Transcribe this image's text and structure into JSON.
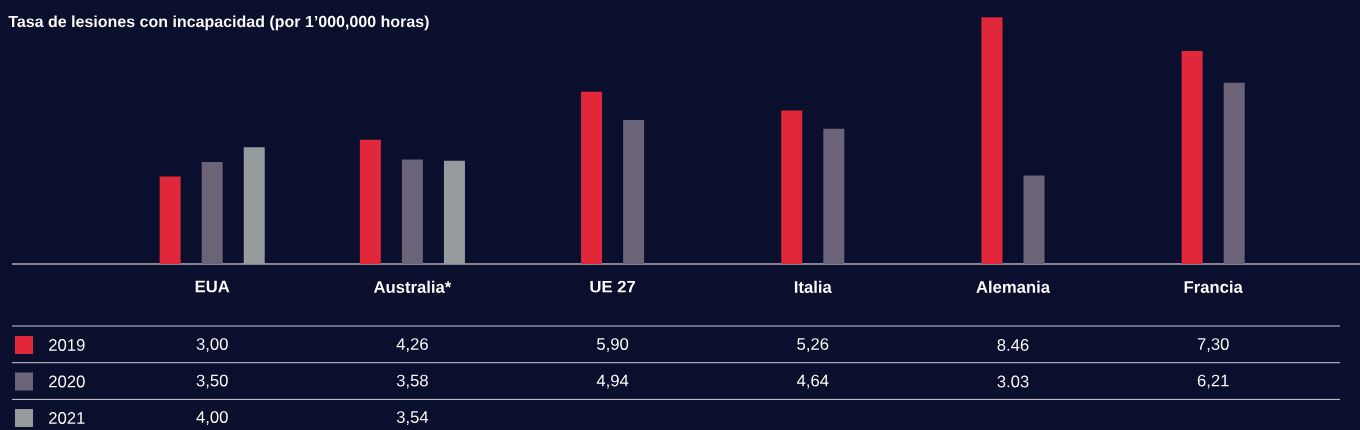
{
  "chart_data": {
    "type": "bar",
    "title": "Tasa de lesiones con incapacidad (por 1’000,000 horas)",
    "categories": [
      "EUA",
      "Australia*",
      "UE 27",
      "Italia",
      "Alemania",
      "Francia"
    ],
    "series": [
      {
        "name": "2019",
        "color": "#e0283a",
        "values": [
          3.0,
          4.26,
          5.9,
          5.26,
          8.46,
          7.3
        ],
        "value_labels": [
          "3,00",
          "4,26",
          "5,90",
          "5,26",
          "8.46",
          "7,30"
        ]
      },
      {
        "name": "2020",
        "color": "#6b6479",
        "values": [
          3.5,
          3.58,
          4.94,
          4.64,
          3.03,
          6.21
        ],
        "value_labels": [
          "3,50",
          "3,58",
          "4,94",
          "4,64",
          "3.03",
          "6,21"
        ]
      },
      {
        "name": "2021",
        "color": "#969b9d",
        "values": [
          4.0,
          3.54,
          null,
          null,
          null,
          null
        ],
        "value_labels": [
          "4,00",
          "3,54",
          null,
          null,
          null,
          null
        ]
      }
    ],
    "ylim": [
      0,
      8.5
    ],
    "legend": "bottom"
  }
}
